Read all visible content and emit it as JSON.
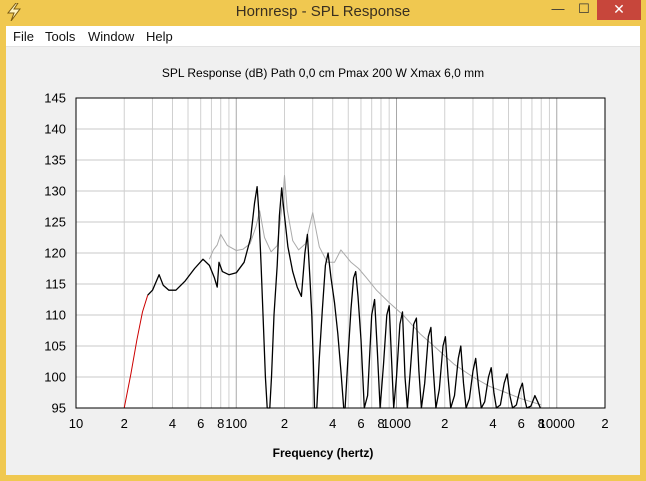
{
  "window": {
    "title": "Hornresp - SPL Response",
    "minimize_glyph": "—",
    "maximize_glyph": "☐",
    "close_glyph": "✕"
  },
  "menu": {
    "items": [
      "File",
      "Tools",
      "Window",
      "Help"
    ]
  },
  "colors": {
    "frame": "#f0c850",
    "close": "#c7463b",
    "plot_bg": "#ffffff",
    "grid": "#c8c8c8",
    "series_main": "#000000",
    "series_alt": "#aaaaaa",
    "series_low": "#cc0000"
  },
  "chart_data": {
    "type": "line",
    "title": "SPL Response (dB)   Path 0,0 cm   Pmax 200 W   Xmax 6,0 mm",
    "xlabel": "Frequency (hertz)",
    "ylabel": "",
    "x_scale": "log",
    "xlim": [
      10,
      20000
    ],
    "ylim": [
      95,
      145
    ],
    "grid": true,
    "y_ticks": [
      145,
      140,
      135,
      130,
      125,
      120,
      115,
      110,
      105,
      100,
      95
    ],
    "x_ticks": [
      {
        "value": 10,
        "label": "10"
      },
      {
        "value": 20,
        "label": "2"
      },
      {
        "value": 40,
        "label": "4"
      },
      {
        "value": 60,
        "label": "6"
      },
      {
        "value": 80,
        "label": "8"
      },
      {
        "value": 100,
        "label": "100"
      },
      {
        "value": 200,
        "label": "2"
      },
      {
        "value": 400,
        "label": "4"
      },
      {
        "value": 600,
        "label": "6"
      },
      {
        "value": 800,
        "label": "8"
      },
      {
        "value": 1000,
        "label": "1000"
      },
      {
        "value": 2000,
        "label": "2"
      },
      {
        "value": 4000,
        "label": "4"
      },
      {
        "value": 6000,
        "label": "6"
      },
      {
        "value": 8000,
        "label": "8"
      },
      {
        "value": 10000,
        "label": "10000"
      },
      {
        "value": 20000,
        "label": "2"
      }
    ],
    "series": [
      {
        "color": "#cc0000",
        "points": [
          [
            20,
            95
          ],
          [
            22,
            100.5
          ],
          [
            24,
            106
          ],
          [
            26,
            110.5
          ],
          [
            28,
            113.2
          ]
        ]
      },
      {
        "color": "#aaaaaa",
        "points": [
          [
            68,
            119
          ],
          [
            72,
            120.5
          ],
          [
            76,
            121.3
          ],
          [
            80,
            123
          ],
          [
            88,
            121.2
          ],
          [
            100,
            120.4
          ],
          [
            110,
            120.6
          ],
          [
            122,
            121.5
          ],
          [
            133,
            124.3
          ],
          [
            140,
            126.8
          ],
          [
            150,
            122.5
          ],
          [
            165,
            120.2
          ],
          [
            180,
            121.2
          ],
          [
            195,
            128.5
          ],
          [
            200,
            132.5
          ],
          [
            208,
            127
          ],
          [
            225,
            122
          ],
          [
            245,
            120.5
          ],
          [
            270,
            121.5
          ],
          [
            300,
            126.5
          ],
          [
            330,
            121
          ],
          [
            370,
            118.5
          ],
          [
            410,
            118.5
          ],
          [
            450,
            120.5
          ],
          [
            520,
            118.5
          ],
          [
            580,
            117.5
          ],
          [
            650,
            116
          ],
          [
            750,
            114
          ],
          [
            900,
            112
          ],
          [
            1100,
            110
          ],
          [
            1400,
            107
          ],
          [
            1800,
            104.5
          ],
          [
            2300,
            102
          ],
          [
            3000,
            100
          ],
          [
            3800,
            98.5
          ],
          [
            4800,
            97.5
          ],
          [
            6000,
            96.5
          ],
          [
            8000,
            95.5
          ]
        ]
      },
      {
        "color": "#000000",
        "points": [
          [
            28,
            113.2
          ],
          [
            30,
            114
          ],
          [
            33,
            116.5
          ],
          [
            35,
            114.8
          ],
          [
            38,
            114
          ],
          [
            42,
            114
          ],
          [
            48,
            115.5
          ],
          [
            55,
            117.5
          ],
          [
            62,
            119
          ],
          [
            68,
            118
          ],
          [
            73,
            116
          ],
          [
            76,
            114.5
          ],
          [
            78,
            118.5
          ],
          [
            82,
            117
          ],
          [
            90,
            116.5
          ],
          [
            100,
            116.8
          ],
          [
            112,
            118.5
          ],
          [
            123,
            122.5
          ],
          [
            130,
            128
          ],
          [
            135,
            130.7
          ],
          [
            138,
            127
          ],
          [
            143,
            118
          ],
          [
            148,
            108
          ],
          [
            152,
            100
          ],
          [
            156,
            95
          ],
          [
            162,
            95
          ],
          [
            166,
            100
          ],
          [
            172,
            110
          ],
          [
            180,
            118
          ],
          [
            186,
            126
          ],
          [
            192,
            130.5
          ],
          [
            198,
            127
          ],
          [
            210,
            121
          ],
          [
            225,
            117
          ],
          [
            240,
            114.5
          ],
          [
            255,
            113
          ],
          [
            268,
            120
          ],
          [
            278,
            123
          ],
          [
            288,
            116
          ],
          [
            296,
            110
          ],
          [
            303,
            102
          ],
          [
            308,
            95
          ],
          [
            318,
            95
          ],
          [
            330,
            103
          ],
          [
            345,
            111
          ],
          [
            360,
            118
          ],
          [
            374,
            120
          ],
          [
            390,
            116
          ],
          [
            410,
            112
          ],
          [
            430,
            107
          ],
          [
            450,
            101
          ],
          [
            468,
            95
          ],
          [
            478,
            95
          ],
          [
            500,
            104
          ],
          [
            520,
            111
          ],
          [
            540,
            116
          ],
          [
            556,
            117
          ],
          [
            575,
            113
          ],
          [
            600,
            106
          ],
          [
            630,
            95
          ],
          [
            660,
            97
          ],
          [
            700,
            110
          ],
          [
            730,
            112.5
          ],
          [
            760,
            104
          ],
          [
            790,
            95
          ],
          [
            830,
            102
          ],
          [
            870,
            110
          ],
          [
            900,
            111.5
          ],
          [
            930,
            103
          ],
          [
            960,
            95
          ],
          [
            1000,
            100
          ],
          [
            1050,
            108.5
          ],
          [
            1090,
            110.5
          ],
          [
            1130,
            100
          ],
          [
            1170,
            95
          ],
          [
            1220,
            101
          ],
          [
            1280,
            108.5
          ],
          [
            1330,
            109.5
          ],
          [
            1380,
            101
          ],
          [
            1430,
            95
          ],
          [
            1500,
            99
          ],
          [
            1580,
            106.5
          ],
          [
            1640,
            108
          ],
          [
            1700,
            101
          ],
          [
            1760,
            95
          ],
          [
            1850,
            98
          ],
          [
            1950,
            105
          ],
          [
            2020,
            106.5
          ],
          [
            2100,
            100
          ],
          [
            2180,
            95
          ],
          [
            2300,
            97
          ],
          [
            2430,
            103
          ],
          [
            2520,
            105
          ],
          [
            2620,
            99
          ],
          [
            2720,
            95
          ],
          [
            2850,
            96.5
          ],
          [
            3000,
            101
          ],
          [
            3120,
            103
          ],
          [
            3250,
            98.5
          ],
          [
            3380,
            95
          ],
          [
            3550,
            96
          ],
          [
            3750,
            100
          ],
          [
            3900,
            101.5
          ],
          [
            4050,
            97.5
          ],
          [
            4200,
            95
          ],
          [
            4450,
            95.5
          ],
          [
            4700,
            99
          ],
          [
            4900,
            100.5
          ],
          [
            5100,
            97
          ],
          [
            5300,
            95
          ],
          [
            5600,
            95.5
          ],
          [
            5900,
            98
          ],
          [
            6100,
            99
          ],
          [
            6300,
            96.5
          ],
          [
            6500,
            95
          ],
          [
            6900,
            95.3
          ],
          [
            7300,
            97
          ],
          [
            7600,
            96
          ],
          [
            7900,
            95
          ]
        ]
      }
    ]
  }
}
